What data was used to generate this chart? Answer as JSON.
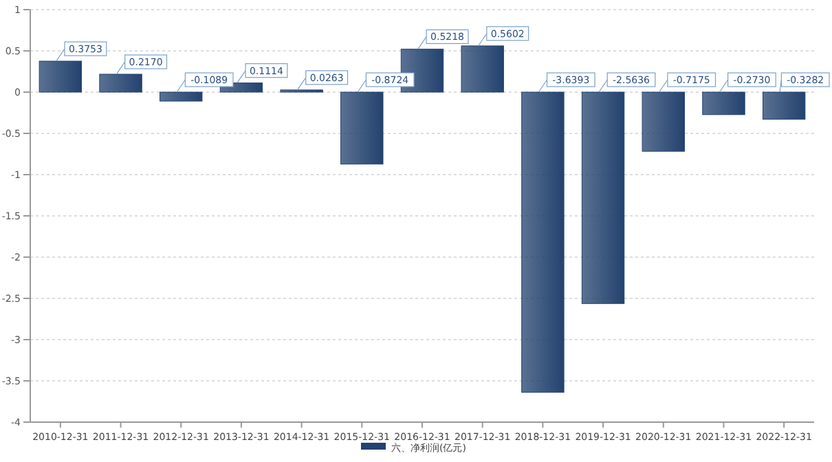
{
  "chart_data": {
    "type": "bar",
    "categories": [
      "2010-12-31",
      "2011-12-31",
      "2012-12-31",
      "2013-12-31",
      "2014-12-31",
      "2015-12-31",
      "2016-12-31",
      "2017-12-31",
      "2018-12-31",
      "2019-12-31",
      "2020-12-31",
      "2021-12-31",
      "2022-12-31"
    ],
    "series": [
      {
        "name": "六、净利润(亿元)",
        "color": "#23426e",
        "values": [
          0.3753,
          0.217,
          -0.1089,
          0.1114,
          0.0263,
          -0.8724,
          0.5218,
          0.5602,
          -3.6393,
          -2.5636,
          -0.7175,
          -0.273,
          -0.3282
        ],
        "value_labels": [
          "0.3753",
          "0.2170",
          "-0.1089",
          "0.1114",
          "0.0263",
          "-0.8724",
          "0.5218",
          "0.5602",
          "-3.6393",
          "-2.5636",
          "-0.7175",
          "-0.2730",
          "-0.3282"
        ]
      }
    ],
    "ylim": [
      -4,
      1
    ],
    "yticks": [
      -4,
      -3.5,
      -3,
      -2.5,
      -2,
      -1.5,
      -1,
      -0.5,
      0,
      0.5,
      1
    ],
    "grid": "y",
    "legend": "bottom"
  }
}
